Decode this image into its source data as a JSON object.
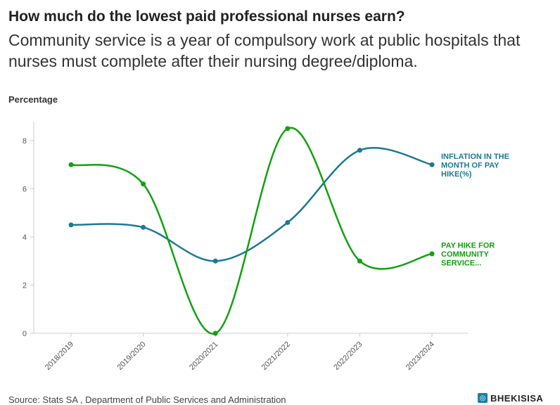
{
  "header": {
    "title": "How much do the lowest paid professional nurses earn?",
    "subtitle": "Community service is a year of compulsory work at public hospitals that nurses must complete after their nursing degree/diploma."
  },
  "footer": {
    "source": "Source: Stats SA , Department of Public Services and Administration",
    "logo_text": "BHEKISISA",
    "logo_icon": "bhekisisa-logo-icon"
  },
  "chart_data": {
    "type": "line",
    "title": "How much do the lowest paid professional nurses earn?",
    "subtitle": "Community service is a year of compulsory work at public hospitals that nurses must complete after their nursing degree/diploma.",
    "ylabel": "Percentage",
    "xlabel": "",
    "categories": [
      "2018/2019",
      "2019/2020",
      "2020/2021",
      "2021/2022",
      "2022/2023",
      "2023/2024"
    ],
    "ylim": [
      0,
      8.8
    ],
    "yticks": [
      0,
      2,
      4,
      6,
      8
    ],
    "grid": false,
    "legend": "end-of-line labels",
    "series": [
      {
        "name": "INFLATION IN THE MONTH OF PAY HIKE(%)",
        "label_lines": [
          "INFLATION IN THE",
          "MONTH OF PAY",
          "HIKE(%)"
        ],
        "color": "#1b7a92",
        "values": [
          4.5,
          4.4,
          3.0,
          4.6,
          7.6,
          7.0
        ]
      },
      {
        "name": "PAY HIKE FOR COMMUNITY SERVICE...",
        "label_lines": [
          "PAY HIKE FOR",
          "COMMUNITY",
          "SERVICE..."
        ],
        "color": "#12a012",
        "values": [
          7.0,
          6.2,
          0.0,
          8.5,
          3.0,
          3.3
        ]
      }
    ]
  }
}
